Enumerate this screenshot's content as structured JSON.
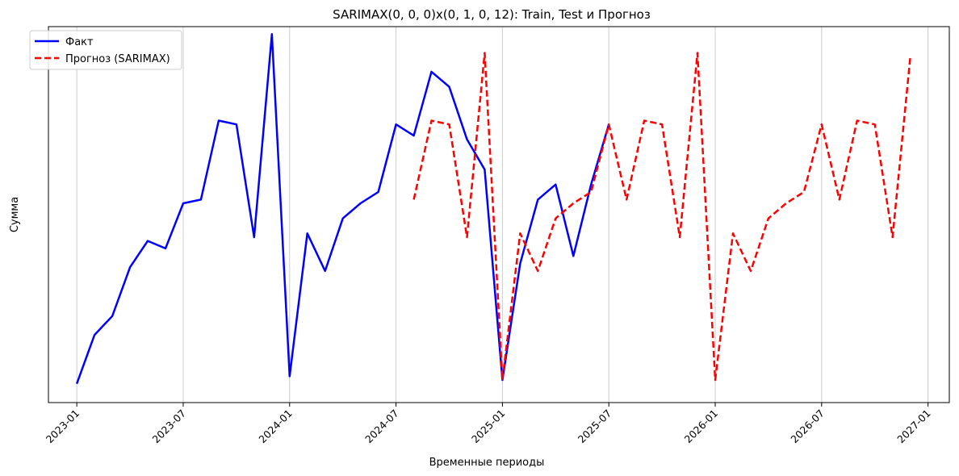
{
  "chart_data": {
    "type": "line",
    "title": "SARIMAX(0, 0, 0)x(0, 1, 0, 12): Train, Test и Прогноз",
    "xlabel": "Временные периоды",
    "ylabel": "Сумма",
    "x_ticks": [
      "2023-01",
      "2023-07",
      "2024-01",
      "2024-07",
      "2025-01",
      "2025-07",
      "2026-01",
      "2026-07",
      "2027-01"
    ],
    "x_tick_months": [
      0,
      6,
      12,
      18,
      24,
      30,
      36,
      42,
      48
    ],
    "x_range_months": [
      -1.6,
      49.2
    ],
    "ylim": [
      0,
      100
    ],
    "grid": "vertical",
    "legend_position": "top-left",
    "series": [
      {
        "name": "Факт",
        "color": "#0000ff",
        "style": "solid",
        "start_month": 0,
        "values": [
          5,
          18,
          23,
          36,
          43,
          41,
          53,
          54,
          75,
          74,
          44,
          98,
          7,
          45,
          35,
          49,
          53,
          56,
          74,
          71,
          88,
          84,
          70,
          62,
          6,
          37,
          54,
          58,
          39,
          58,
          74
        ]
      },
      {
        "name": "Прогноз (SARIMAX)",
        "color": "#ff0000",
        "style": "dashed",
        "start_month": 19,
        "values": [
          54,
          75,
          74,
          44,
          93,
          6,
          45,
          35,
          49,
          53,
          56,
          74,
          54,
          75,
          74,
          44,
          93,
          6,
          45,
          35,
          49,
          53,
          56,
          74,
          54,
          75,
          74,
          44,
          92
        ]
      }
    ]
  }
}
